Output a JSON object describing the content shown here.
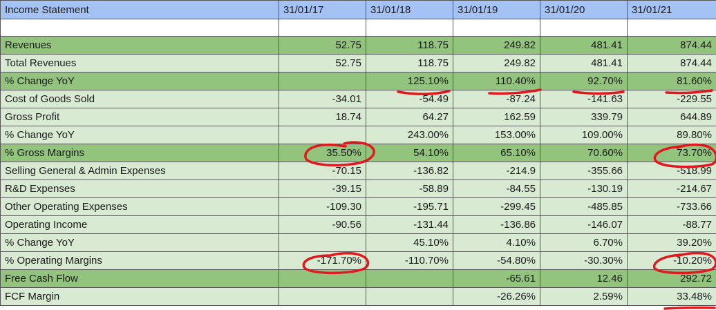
{
  "table": {
    "header": [
      "Income Statement",
      "31/01/17",
      "31/01/18",
      "31/01/19",
      "31/01/20",
      "31/01/21"
    ],
    "rows": [
      {
        "label": "Revenues",
        "values": [
          "52.75",
          "118.75",
          "249.82",
          "481.41",
          "874.44"
        ],
        "style": "dark"
      },
      {
        "label": "Total Revenues",
        "values": [
          "52.75",
          "118.75",
          "249.82",
          "481.41",
          "874.44"
        ],
        "style": "light"
      },
      {
        "label": "% Change YoY",
        "values": [
          "",
          "125.10%",
          "110.40%",
          "92.70%",
          "81.60%"
        ],
        "style": "dark"
      },
      {
        "label": "Cost of Goods Sold",
        "values": [
          "-34.01",
          "-54.49",
          "-87.24",
          "-141.63",
          "-229.55"
        ],
        "style": "light"
      },
      {
        "label": "Gross Profit",
        "values": [
          "18.74",
          "64.27",
          "162.59",
          "339.79",
          "644.89"
        ],
        "style": "light"
      },
      {
        "label": "% Change YoY",
        "values": [
          "",
          "243.00%",
          "153.00%",
          "109.00%",
          "89.80%"
        ],
        "style": "light"
      },
      {
        "label": "% Gross Margins",
        "values": [
          "35.50%",
          "54.10%",
          "65.10%",
          "70.60%",
          "73.70%"
        ],
        "style": "dark"
      },
      {
        "label": "Selling General & Admin Expenses",
        "values": [
          "-70.15",
          "-136.82",
          "-214.9",
          "-355.66",
          "-518.99"
        ],
        "style": "light"
      },
      {
        "label": "R&D Expenses",
        "values": [
          "-39.15",
          "-58.89",
          "-84.55",
          "-130.19",
          "-214.67"
        ],
        "style": "light"
      },
      {
        "label": "Other Operating Expenses",
        "values": [
          "-109.30",
          "-195.71",
          "-299.45",
          "-485.85",
          "-733.66"
        ],
        "style": "light"
      },
      {
        "label": "Operating Income",
        "values": [
          "-90.56",
          "-131.44",
          "-136.86",
          "-146.07",
          "-88.77"
        ],
        "style": "light"
      },
      {
        "label": "% Change YoY",
        "values": [
          "",
          "45.10%",
          "4.10%",
          "6.70%",
          "39.20%"
        ],
        "style": "light"
      },
      {
        "label": "% Operating Margins",
        "values": [
          "-171.70%",
          "-110.70%",
          "-54.80%",
          "-30.30%",
          "-10.20%"
        ],
        "style": "light"
      },
      {
        "label": "Free Cash Flow",
        "values": [
          "",
          "",
          "-65.61",
          "12.46",
          "292.72"
        ],
        "style": "dark"
      },
      {
        "label": "FCF Margin",
        "values": [
          "",
          "",
          "-26.26%",
          "2.59%",
          "33.48%"
        ],
        "style": "light"
      }
    ]
  },
  "annotations": {
    "color": "#e0191e",
    "underlined": [
      "% Change YoY 31/01/18",
      "% Change YoY 31/01/19",
      "% Change YoY 31/01/20",
      "% Change YoY 31/01/21",
      "FCF Margin 31/01/21"
    ],
    "circled": [
      "% Gross Margins 31/01/17",
      "% Gross Margins 31/01/21",
      "% Operating Margins 31/01/17",
      "% Operating Margins 31/01/21"
    ]
  }
}
